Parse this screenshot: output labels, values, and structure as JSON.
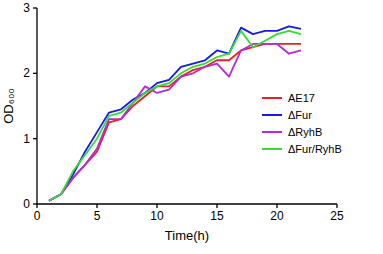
{
  "chart_data": {
    "type": "line",
    "x_label": "Time(h)",
    "y_label": "OD₆₀₀",
    "x": [
      1,
      2,
      3,
      4,
      5,
      6,
      7,
      8,
      9,
      10,
      11,
      12,
      13,
      14,
      15,
      16,
      17,
      18,
      19,
      20,
      21,
      22
    ],
    "series": [
      {
        "name": "AE17",
        "color": "#e8202a",
        "values": [
          0.05,
          0.15,
          0.4,
          0.6,
          0.8,
          1.25,
          1.3,
          1.5,
          1.65,
          1.8,
          1.8,
          1.95,
          2.05,
          2.1,
          2.2,
          2.2,
          2.35,
          2.4,
          2.45,
          2.45,
          2.45,
          2.45
        ]
      },
      {
        "name": "ΔFur",
        "color": "#1a1ae6",
        "values": [
          0.05,
          0.15,
          0.45,
          0.8,
          1.1,
          1.4,
          1.45,
          1.6,
          1.7,
          1.85,
          1.9,
          2.1,
          2.15,
          2.2,
          2.35,
          2.3,
          2.7,
          2.6,
          2.65,
          2.65,
          2.72,
          2.68
        ]
      },
      {
        "name": "ΔRyhB",
        "color": "#b42bd6",
        "values": [
          0.05,
          0.15,
          0.4,
          0.6,
          0.85,
          1.3,
          1.3,
          1.55,
          1.8,
          1.7,
          1.75,
          1.95,
          2.0,
          2.1,
          2.15,
          1.95,
          2.35,
          2.45,
          2.45,
          2.45,
          2.3,
          2.35
        ]
      },
      {
        "name": "ΔFur/RyhB",
        "color": "#33dd33",
        "values": [
          0.05,
          0.15,
          0.5,
          0.75,
          1.0,
          1.35,
          1.4,
          1.55,
          1.7,
          1.8,
          1.85,
          2.0,
          2.1,
          2.15,
          2.25,
          2.3,
          2.65,
          2.4,
          2.5,
          2.6,
          2.65,
          2.6
        ]
      }
    ],
    "xlim": [
      0,
      25
    ],
    "xticks": [
      0,
      5,
      10,
      15,
      20,
      25
    ],
    "ylim": [
      0,
      3
    ],
    "yticks": [
      0,
      1,
      2,
      3
    ],
    "grid": false,
    "legend": "right"
  }
}
